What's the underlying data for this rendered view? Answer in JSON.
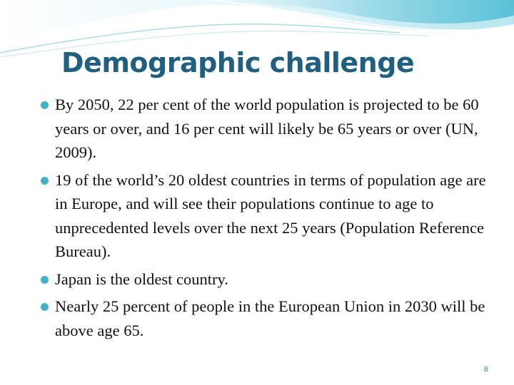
{
  "slide": {
    "title": "Demographic challenge",
    "bullets": [
      {
        "text": "By 2050, 22 per cent of the world population is projected to be 60 years or over, and 16 per cent will likely be 65 years or over (UN, 2009)."
      },
      {
        "text": "19 of the world’s 20 oldest countries in terms of population age are in Europe, and will see their populations continue to age to unprecedented levels over the next 25 years (Population Reference Bureau)."
      },
      {
        "text": "Japan is the oldest country."
      },
      {
        "text": "Nearly 25 percent of people in the European Union in 2030 will be above age 65."
      }
    ],
    "page_number": "8"
  },
  "colors": {
    "title": "#1f5f7f",
    "bullet": "#43b2c6",
    "wave": "#7fd0e0"
  }
}
